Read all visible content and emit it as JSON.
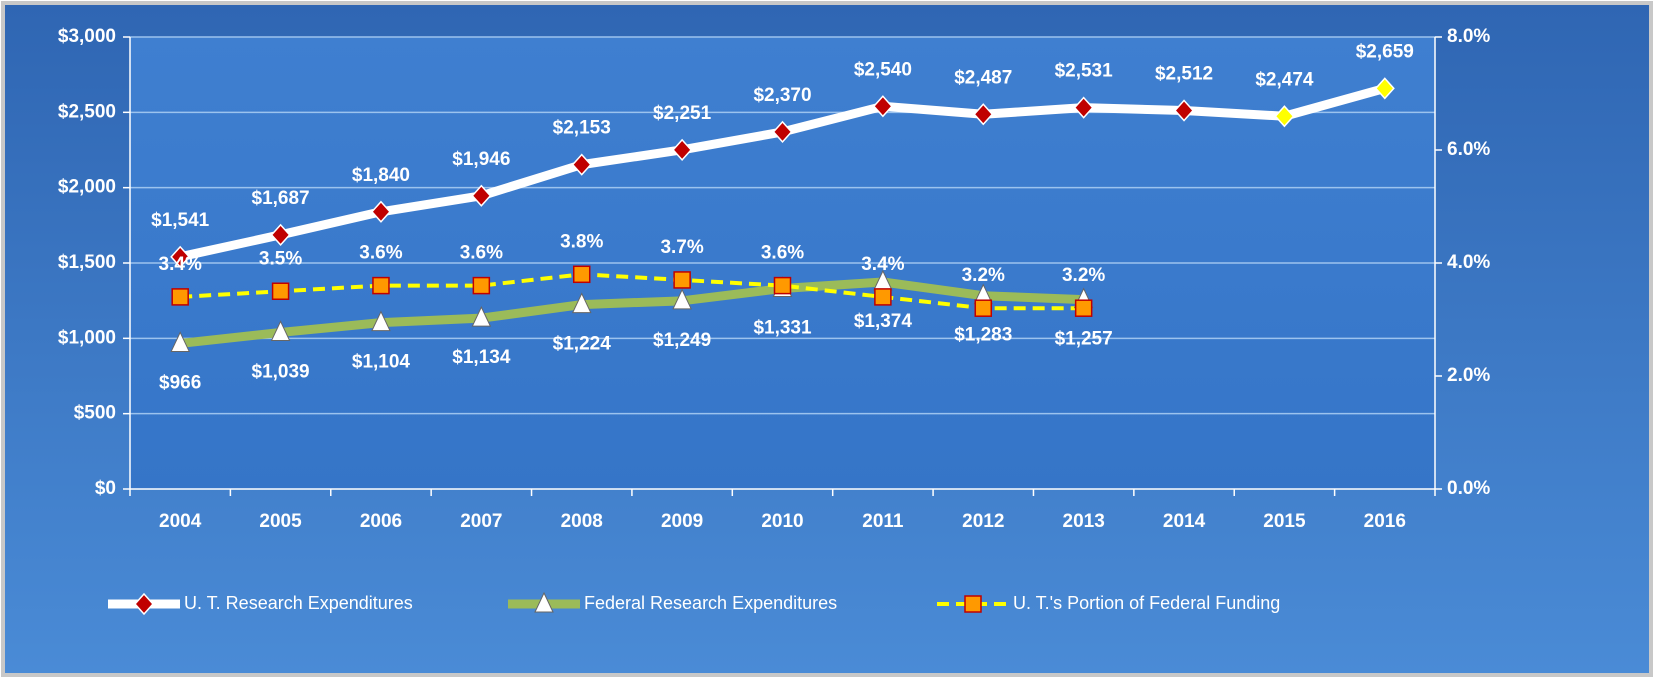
{
  "chart_data": {
    "type": "line",
    "categories": [
      "2004",
      "2005",
      "2006",
      "2007",
      "2008",
      "2009",
      "2010",
      "2011",
      "2012",
      "2013",
      "2014",
      "2015",
      "2016"
    ],
    "series": [
      {
        "name": "U. T. Research Expenditures",
        "color": "#ffffff",
        "marker": "diamond",
        "marker_color": "#c00000",
        "marker_colors": [
          "#c00000",
          "#c00000",
          "#c00000",
          "#c00000",
          "#c00000",
          "#c00000",
          "#c00000",
          "#c00000",
          "#c00000",
          "#c00000",
          "#c00000",
          "#ffff00",
          "#ffff00"
        ],
        "values": [
          1541,
          1687,
          1840,
          1946,
          2153,
          2251,
          2370,
          2540,
          2487,
          2531,
          2512,
          2474,
          2659
        ],
        "value_labels": [
          "$1,541",
          "$1,687",
          "$1,840",
          "$1,946",
          "$2,153",
          "$2,251",
          "$2,370",
          "$2,540",
          "$2,487",
          "$2,531",
          "$2,512",
          "$2,474",
          "$2,659"
        ]
      },
      {
        "name": "Federal Research Expenditures",
        "color": "#9bbb59",
        "marker": "triangle",
        "marker_color": "#ffffff",
        "values": [
          966,
          1039,
          1104,
          1134,
          1224,
          1249,
          1331,
          1374,
          1283,
          1257,
          null,
          null,
          null
        ],
        "value_labels": [
          "$966",
          "$1,039",
          "$1,104",
          "$1,134",
          "$1,224",
          "$1,249",
          "$1,331",
          "$1,374",
          "$1,283",
          "$1,257",
          null,
          null,
          null
        ]
      },
      {
        "name": "U. T.'s Portion of Federal Funding",
        "color": "#ffff00",
        "dashed": true,
        "marker": "square",
        "marker_color": "#ff9900",
        "axis": "y2",
        "values": [
          3.4,
          3.5,
          3.6,
          3.6,
          3.8,
          3.7,
          3.6,
          3.4,
          3.2,
          3.2,
          null,
          null,
          null
        ],
        "value_labels": [
          "3.4%",
          "3.5%",
          "3.6%",
          "3.6%",
          "3.8%",
          "3.7%",
          "3.6%",
          "3.4%",
          "3.2%",
          "3.2%",
          null,
          null,
          null
        ]
      }
    ],
    "ylim": [
      0,
      3000
    ],
    "yticks": [
      {
        "value": 0,
        "label": "$0"
      },
      {
        "value": 500,
        "label": "$500"
      },
      {
        "value": 1000,
        "label": "$1,000"
      },
      {
        "value": 1500,
        "label": "$1,500"
      },
      {
        "value": 2000,
        "label": "$2,000"
      },
      {
        "value": 2500,
        "label": "$2,500"
      },
      {
        "value": 3000,
        "label": "$3,000"
      }
    ],
    "y2lim": [
      0,
      8
    ],
    "y2ticks": [
      {
        "value": 0,
        "label": "0.0%"
      },
      {
        "value": 2,
        "label": "2.0%"
      },
      {
        "value": 4,
        "label": "4.0%"
      },
      {
        "value": 6,
        "label": "6.0%"
      },
      {
        "value": 8,
        "label": "8.0%"
      }
    ],
    "grid": true,
    "legend": "bottom"
  }
}
